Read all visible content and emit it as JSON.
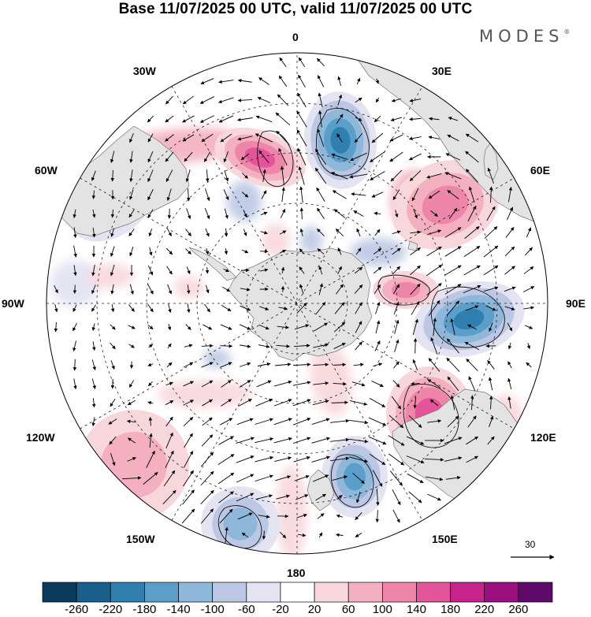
{
  "header": {
    "title": "Base 11/07/2025 00 UTC, valid 11/07/2025 00 UTC",
    "brand": "MODES",
    "brand_mark": "®"
  },
  "map": {
    "projection": "south-polar-stereographic",
    "longitude_labels": {
      "lon_0": "0",
      "lon_30e": "30E",
      "lon_60e": "60E",
      "lon_90e": "90E",
      "lon_120e": "120E",
      "lon_150e": "150E",
      "lon_180": "180",
      "lon_150w": "150W",
      "lon_120w": "120W",
      "lon_90w": "90W",
      "lon_60w": "60W",
      "lon_30w": "30W"
    },
    "anomaly_centers": [
      {
        "id": "neg-near-0",
        "sign": "negative",
        "strength": -180
      },
      {
        "id": "pos-near-20w",
        "sign": "positive",
        "strength": 160
      },
      {
        "id": "pos-near-55e",
        "sign": "positive",
        "strength": 120
      },
      {
        "id": "neg-near-95e",
        "sign": "negative",
        "strength": -180
      },
      {
        "id": "pos-near-125e",
        "sign": "positive",
        "strength": 140
      },
      {
        "id": "neg-near-150e",
        "sign": "negative",
        "strength": -140
      },
      {
        "id": "neg-near-170w",
        "sign": "negative",
        "strength": -120
      },
      {
        "id": "pos-near-75e",
        "sign": "positive",
        "strength": 100
      },
      {
        "id": "neg-near-65w",
        "sign": "negative",
        "strength": -80
      },
      {
        "id": "pos-near-130w",
        "sign": "positive",
        "strength": 60
      }
    ]
  },
  "vector_reference": {
    "label": "30"
  },
  "colorbar": {
    "labels": [
      "-260",
      "-220",
      "-180",
      "-140",
      "-100",
      "-60",
      "-20",
      "20",
      "60",
      "100",
      "140",
      "180",
      "220",
      "260"
    ],
    "colors": [
      "#0a3a5c",
      "#1a5f8c",
      "#2f7fb0",
      "#5a9ec9",
      "#8fb7d9",
      "#bcc7e4",
      "#e3e3f1",
      "#ffffff",
      "#f8d7dc",
      "#f4b0c0",
      "#ee86a9",
      "#e3549a",
      "#c8228c",
      "#9b0f7e",
      "#5e0a6a"
    ]
  }
}
